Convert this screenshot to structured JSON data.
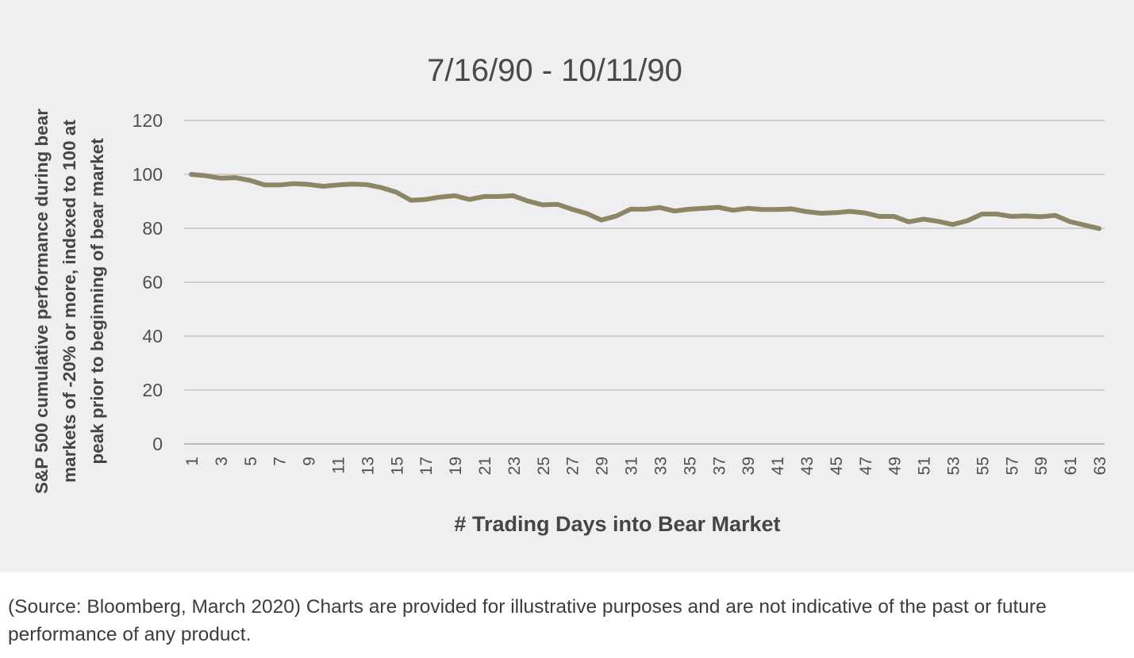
{
  "chart_data": {
    "type": "line",
    "title": "7/16/90 - 10/11/90",
    "xlabel": "# Trading Days into Bear Market",
    "ylabel_lines": [
      "S&P 500 cumulative performance during bear",
      "markets of -20% or more, indexed to 100 at",
      "peak prior to beginning of bear market"
    ],
    "ylim": [
      0,
      120
    ],
    "yticks": [
      0,
      20,
      40,
      60,
      80,
      100,
      120
    ],
    "xlim": [
      1,
      63
    ],
    "xtick_labels": [
      1,
      3,
      5,
      7,
      9,
      11,
      13,
      15,
      17,
      19,
      21,
      23,
      25,
      27,
      29,
      31,
      33,
      35,
      37,
      39,
      41,
      43,
      45,
      47,
      49,
      51,
      53,
      55,
      57,
      59,
      61,
      63
    ],
    "grid": true,
    "legend": "none",
    "series": [
      {
        "color": "#8d8665",
        "x": [
          1,
          2,
          3,
          4,
          5,
          6,
          7,
          8,
          9,
          10,
          11,
          12,
          13,
          14,
          15,
          16,
          17,
          18,
          19,
          20,
          21,
          22,
          23,
          24,
          25,
          26,
          27,
          28,
          29,
          30,
          31,
          32,
          33,
          34,
          35,
          36,
          37,
          38,
          39,
          40,
          41,
          42,
          43,
          44,
          45,
          46,
          47,
          48,
          49,
          50,
          51,
          52,
          53,
          54,
          55,
          56,
          57,
          58,
          59,
          60,
          61,
          62,
          63
        ],
        "values": [
          100,
          99.5,
          98.6,
          98.8,
          97.8,
          96.1,
          96.1,
          96.6,
          96.3,
          95.6,
          96.1,
          96.4,
          96.2,
          95.1,
          93.4,
          90.4,
          90.7,
          91.6,
          92.1,
          90.7,
          91.8,
          91.8,
          92.1,
          90.1,
          88.7,
          88.9,
          87.1,
          85.5,
          83.1,
          84.5,
          87.1,
          87.1,
          87.7,
          86.4,
          87.1,
          87.4,
          87.8,
          86.7,
          87.4,
          87.0,
          87.0,
          87.2,
          86.2,
          85.6,
          85.8,
          86.3,
          85.7,
          84.4,
          84.4,
          82.4,
          83.4,
          82.6,
          81.4,
          82.8,
          85.3,
          85.3,
          84.4,
          84.6,
          84.3,
          84.8,
          82.5,
          81.2,
          79.9
        ]
      }
    ]
  },
  "caption": "(Source: Bloomberg, March 2020) Charts are provided for illustrative purposes and are not indicative of the past or future performance of any product."
}
